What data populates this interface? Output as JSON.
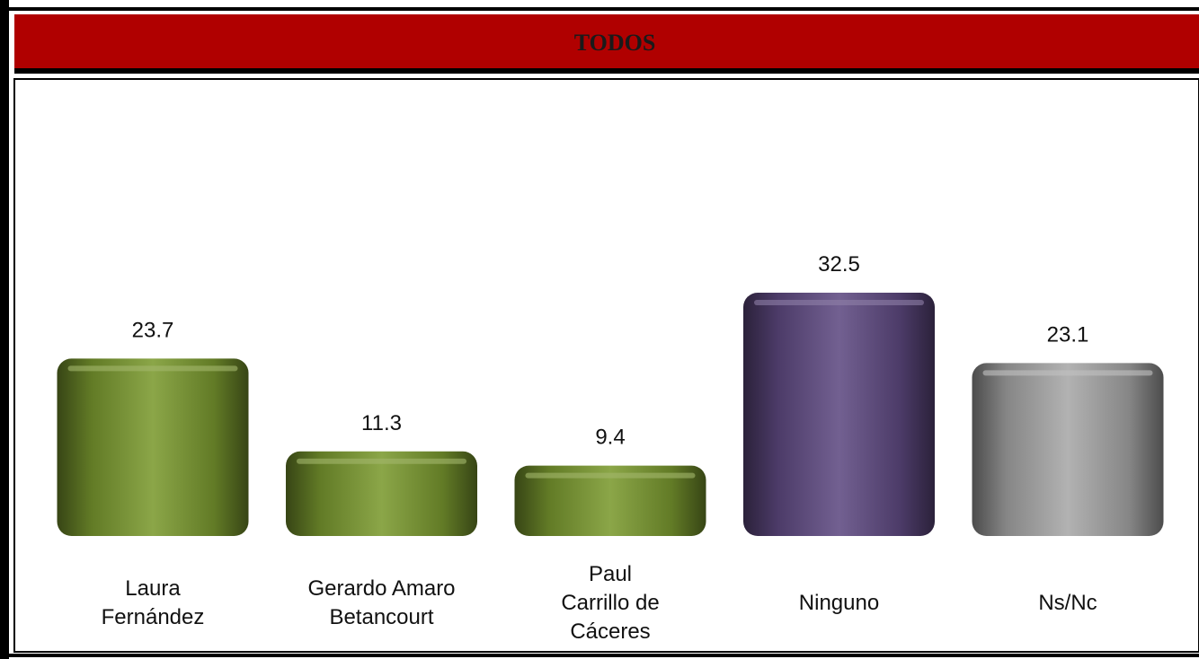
{
  "chart_data": {
    "type": "bar",
    "title": "TODOS",
    "categories": [
      "Laura\nFernández",
      "Gerardo Amaro\nBetancourt",
      "Paul\nCarrillo de\nCáceres",
      "Ninguno",
      "Ns/Nc"
    ],
    "values": [
      23.7,
      11.3,
      9.4,
      32.5,
      23.1
    ],
    "colors": [
      "#7b9a2f",
      "#7b9a2f",
      "#7b9a2f",
      "#5f4a82",
      "#a8a8a8"
    ]
  }
}
